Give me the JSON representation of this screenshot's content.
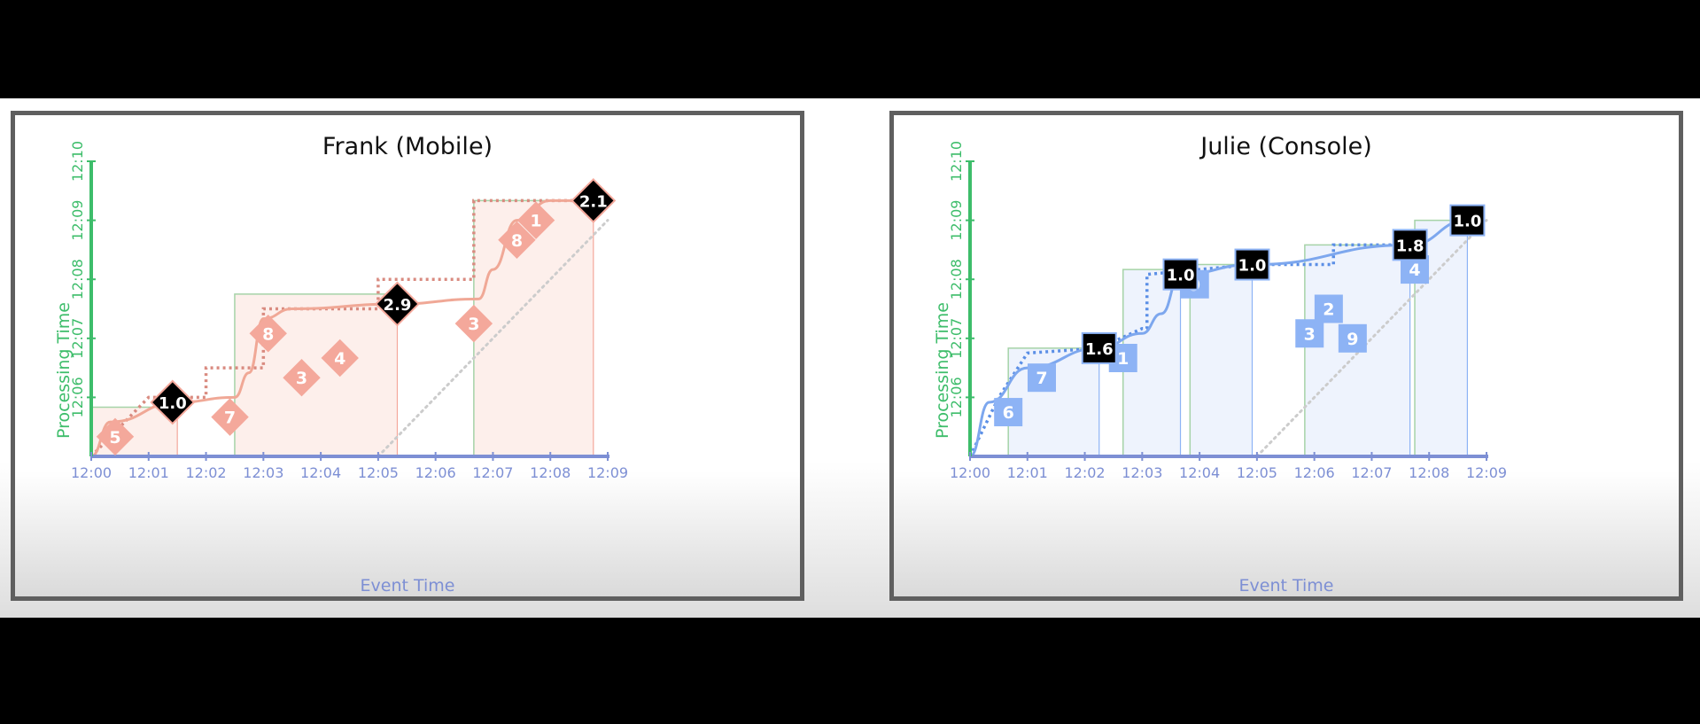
{
  "chart_data": [
    {
      "type": "line",
      "title": "Frank (Mobile)",
      "xlabel": "Event Time",
      "ylabel": "Processing Time",
      "x_ticks": [
        "12:00",
        "12:01",
        "12:02",
        "12:03",
        "12:04",
        "12:05",
        "12:06",
        "12:07",
        "12:08",
        "12:09"
      ],
      "y_ticks": [
        "12:06",
        "12:07",
        "12:08",
        "12:09",
        "12:10"
      ],
      "x_range": [
        "12:00",
        "12:09"
      ],
      "y_range": [
        "12:05",
        "12:10"
      ],
      "colors": {
        "accent": "#f4a89b",
        "fill": "#fdefeb",
        "watermark_line": "#f0a896",
        "dotted": "#d98b80",
        "window": "#a6d3a8",
        "diagonal": "#cccccc",
        "label_box": "#000000"
      },
      "events": [
        {
          "label": "5",
          "x": "12:00:25",
          "y": "12:05:20"
        },
        {
          "label": "7",
          "x": "12:02:25",
          "y": "12:05:40"
        },
        {
          "label": "8",
          "x": "12:03:05",
          "y": "12:07:05"
        },
        {
          "label": "3",
          "x": "12:03:40",
          "y": "12:06:20"
        },
        {
          "label": "4",
          "x": "12:04:20",
          "y": "12:06:40"
        },
        {
          "label": "3",
          "x": "12:06:40",
          "y": "12:07:15"
        },
        {
          "label": "8",
          "x": "12:07:25",
          "y": "12:08:40"
        },
        {
          "label": "1",
          "x": "12:07:45",
          "y": "12:09:00"
        }
      ],
      "panes": [
        {
          "label": "1.0",
          "x": "12:01:25",
          "y": "12:05:55"
        },
        {
          "label": "2.9",
          "x": "12:05:20",
          "y": "12:07:35"
        },
        {
          "label": "2.1",
          "x": "12:08:45",
          "y": "12:09:20"
        }
      ],
      "windows": [
        {
          "x0": "12:00",
          "x1": "12:01:30",
          "y": "12:05:50"
        },
        {
          "x0": "12:02:30",
          "x1": "12:05:20",
          "y": "12:07:45"
        },
        {
          "x0": "12:06:40",
          "x1": "12:08:45",
          "y": "12:09:20"
        }
      ],
      "watermark": [
        [
          "12:00",
          "12:05"
        ],
        [
          "12:00:20",
          "12:05:35"
        ],
        [
          "12:01:30",
          "12:05:55"
        ],
        [
          "12:02:30",
          "12:06:00"
        ],
        [
          "12:02:45",
          "12:06:25"
        ],
        [
          "12:03",
          "12:07:20"
        ],
        [
          "12:03:30",
          "12:07:30"
        ],
        [
          "12:05:20",
          "12:07:35"
        ],
        [
          "12:06:45",
          "12:07:40"
        ],
        [
          "12:07",
          "12:08:10"
        ],
        [
          "12:07:25",
          "12:09:00"
        ],
        [
          "12:08",
          "12:09:20"
        ],
        [
          "12:08:45",
          "12:09:20"
        ]
      ],
      "ideal_watermark": [
        [
          "12:00",
          "12:05"
        ],
        [
          "12:01",
          "12:06"
        ],
        [
          "12:02",
          "12:06"
        ],
        [
          "12:02",
          "12:06:30"
        ],
        [
          "12:03",
          "12:06:30"
        ],
        [
          "12:03",
          "12:07:30"
        ],
        [
          "12:05",
          "12:07:30"
        ],
        [
          "12:05",
          "12:08"
        ],
        [
          "12:06:40",
          "12:08"
        ],
        [
          "12:06:40",
          "12:09:20"
        ],
        [
          "12:08:45",
          "12:09:20"
        ]
      ],
      "diagonal": [
        [
          "12:05",
          "12:05"
        ],
        [
          "12:09",
          "12:09"
        ]
      ]
    },
    {
      "type": "line",
      "title": "Julie (Console)",
      "xlabel": "Event Time",
      "ylabel": "Processing Time",
      "x_ticks": [
        "12:00",
        "12:01",
        "12:02",
        "12:03",
        "12:04",
        "12:05",
        "12:06",
        "12:07",
        "12:08",
        "12:09"
      ],
      "y_ticks": [
        "12:06",
        "12:07",
        "12:08",
        "12:09",
        "12:10"
      ],
      "x_range": [
        "12:00",
        "12:09"
      ],
      "y_range": [
        "12:05",
        "12:10"
      ],
      "colors": {
        "accent": "#8db3f5",
        "fill": "#eef3fd",
        "watermark_line": "#7da7ee",
        "dotted": "#5b8fe6",
        "window": "#a6d3a8",
        "diagonal": "#cccccc",
        "label_box": "#000000"
      },
      "events": [
        {
          "label": "6",
          "x": "12:00:40",
          "y": "12:05:45"
        },
        {
          "label": "7",
          "x": "12:01:15",
          "y": "12:06:20"
        },
        {
          "label": "1",
          "x": "12:02:40",
          "y": "12:06:40"
        },
        {
          "label": "9",
          "x": "12:03:55",
          "y": "12:07:55"
        },
        {
          "label": "3",
          "x": "12:05:55",
          "y": "12:07:05"
        },
        {
          "label": "2",
          "x": "12:06:15",
          "y": "12:07:30"
        },
        {
          "label": "9",
          "x": "12:06:40",
          "y": "12:07:00"
        },
        {
          "label": "4",
          "x": "12:07:45",
          "y": "12:08:10"
        }
      ],
      "panes": [
        {
          "label": "1.6",
          "x": "12:02:15",
          "y": "12:06:50"
        },
        {
          "label": "1.0",
          "x": "12:03:40",
          "y": "12:08:05"
        },
        {
          "label": "1.0",
          "x": "12:04:55",
          "y": "12:08:15"
        },
        {
          "label": "1.8",
          "x": "12:07:40",
          "y": "12:08:35"
        },
        {
          "label": "1.0",
          "x": "12:08:40",
          "y": "12:09:00"
        }
      ],
      "windows": [
        {
          "x0": "12:00:40",
          "x1": "12:02:15",
          "y": "12:06:50"
        },
        {
          "x0": "12:02:40",
          "x1": "12:03:40",
          "y": "12:08:10"
        },
        {
          "x0": "12:03:50",
          "x1": "12:04:55",
          "y": "12:08:15"
        },
        {
          "x0": "12:05:50",
          "x1": "12:07:40",
          "y": "12:08:35"
        },
        {
          "x0": "12:07:45",
          "x1": "12:08:40",
          "y": "12:09:00"
        }
      ],
      "watermark": [
        [
          "12:00",
          "12:05"
        ],
        [
          "12:00:20",
          "12:05:55"
        ],
        [
          "12:01",
          "12:06:30"
        ],
        [
          "12:02:15",
          "12:06:50"
        ],
        [
          "12:03",
          "12:07:05"
        ],
        [
          "12:03:20",
          "12:07:25"
        ],
        [
          "12:03:40",
          "12:08:05"
        ],
        [
          "12:04:55",
          "12:08:15"
        ],
        [
          "12:07:40",
          "12:08:35"
        ],
        [
          "12:08:40",
          "12:09:00"
        ]
      ],
      "ideal_watermark": [
        [
          "12:00",
          "12:05"
        ],
        [
          "12:00:30",
          "12:06"
        ],
        [
          "12:01",
          "12:06:45"
        ],
        [
          "12:02:15",
          "12:06:50"
        ],
        [
          "12:03",
          "12:07:10"
        ],
        [
          "12:03:05",
          "12:07:10"
        ],
        [
          "12:03:05",
          "12:08:05"
        ],
        [
          "12:04:55",
          "12:08:15"
        ],
        [
          "12:06:20",
          "12:08:15"
        ],
        [
          "12:06:20",
          "12:08:35"
        ],
        [
          "12:07:40",
          "12:08:35"
        ]
      ],
      "diagonal": [
        [
          "12:05",
          "12:05"
        ],
        [
          "12:09",
          "12:09"
        ]
      ]
    }
  ]
}
